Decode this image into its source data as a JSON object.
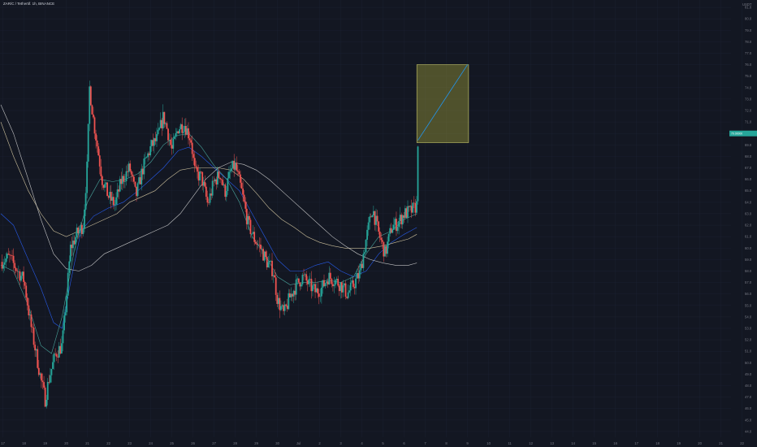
{
  "header": {
    "symbol": "ZAR/C / Tethertif. 1h, BINANCE"
  },
  "price_axis": {
    "currency": "USDT",
    "ticks": [
      "81.0",
      "80.0",
      "79.0",
      "78.0",
      "77.0",
      "76.0",
      "75.0",
      "74.0",
      "73.0",
      "72.0",
      "71.0",
      "70.0",
      "69.0",
      "68.0",
      "67.0",
      "66.0",
      "65.0",
      "64.0",
      "63.0",
      "62.0",
      "61.0",
      "60.0",
      "59.0",
      "58.0",
      "57.0",
      "56.0",
      "55.0",
      "54.0",
      "53.0",
      "52.0",
      "51.0",
      "50.0",
      "49.0",
      "48.0",
      "47.0",
      "46.0",
      "45.0",
      "44.0"
    ],
    "last_price_label": "70.00000"
  },
  "time_axis": {
    "ticks": [
      "17",
      "18",
      "19",
      "20",
      "21",
      "22",
      "23",
      "24",
      "25",
      "26",
      "27",
      "28",
      "29",
      "30",
      "Jul",
      "2",
      "3",
      "4",
      "5",
      "6",
      "7",
      "8",
      "9",
      "10",
      "11",
      "12",
      "13",
      "14",
      "15",
      "16",
      "17",
      "18",
      "19",
      "20",
      "21",
      "22"
    ]
  },
  "colors": {
    "background": "#131722",
    "grid": "#1c2030",
    "up_candle": "#26a69a",
    "down_candle": "#ef5350",
    "ma_fast": "#2962ff",
    "ma_teal": "#4fb3a9",
    "ma_slow": "#e0d2a8",
    "ma_long": "#d6d6d6",
    "projection_box": "#9a9a3a",
    "projection_line": "#2196f3",
    "last_price_tag": "#26a69a"
  },
  "chart_data": {
    "type": "candlestick",
    "x_unit": "day",
    "ylim": [
      43.5,
      81.5
    ],
    "grid": false,
    "price_path": [
      [
        16.9,
        58.8
      ],
      [
        17.3,
        59.2
      ],
      [
        17.7,
        58.0
      ],
      [
        18.0,
        57.2
      ],
      [
        18.3,
        53.5
      ],
      [
        18.5,
        51.5
      ],
      [
        18.8,
        48.5
      ],
      [
        19.0,
        46.8
      ],
      [
        19.2,
        48.8
      ],
      [
        19.5,
        50.8
      ],
      [
        19.8,
        51.5
      ],
      [
        20.0,
        55.5
      ],
      [
        20.2,
        60.0
      ],
      [
        20.5,
        61.2
      ],
      [
        20.8,
        62.0
      ],
      [
        21.0,
        67.5
      ],
      [
        21.1,
        74.0
      ],
      [
        21.3,
        71.0
      ],
      [
        21.5,
        68.5
      ],
      [
        21.7,
        66.0
      ],
      [
        22.0,
        64.5
      ],
      [
        22.3,
        63.8
      ],
      [
        22.6,
        65.8
      ],
      [
        23.0,
        67.0
      ],
      [
        23.3,
        64.5
      ],
      [
        23.6,
        66.8
      ],
      [
        24.0,
        68.8
      ],
      [
        24.3,
        69.5
      ],
      [
        24.6,
        71.5
      ],
      [
        24.8,
        70.2
      ],
      [
        25.0,
        68.5
      ],
      [
        25.3,
        70.5
      ],
      [
        25.6,
        70.8
      ],
      [
        25.9,
        69.5
      ],
      [
        26.1,
        66.5
      ],
      [
        26.4,
        66.2
      ],
      [
        26.7,
        63.8
      ],
      [
        27.0,
        65.8
      ],
      [
        27.3,
        66.5
      ],
      [
        27.5,
        64.8
      ],
      [
        27.8,
        66.8
      ],
      [
        28.0,
        67.2
      ],
      [
        28.3,
        65.0
      ],
      [
        28.6,
        62.2
      ],
      [
        28.9,
        60.8
      ],
      [
        29.2,
        60.0
      ],
      [
        29.5,
        58.8
      ],
      [
        29.8,
        58.0
      ],
      [
        30.0,
        55.5
      ],
      [
        30.3,
        54.2
      ],
      [
        30.6,
        55.8
      ],
      [
        30.9,
        56.8
      ],
      [
        31.2,
        57.5
      ],
      [
        31.5,
        56.8
      ],
      [
        31.8,
        56.2
      ],
      [
        32.1,
        56.5
      ],
      [
        32.4,
        57.5
      ],
      [
        32.7,
        57.2
      ],
      [
        33.0,
        56.8
      ],
      [
        33.3,
        56.0
      ],
      [
        33.6,
        56.8
      ],
      [
        33.9,
        57.8
      ],
      [
        34.2,
        60.8
      ],
      [
        34.5,
        63.5
      ],
      [
        34.8,
        61.2
      ],
      [
        35.1,
        59.5
      ],
      [
        35.4,
        61.8
      ],
      [
        35.7,
        62.2
      ],
      [
        36.0,
        63.0
      ],
      [
        36.3,
        63.2
      ],
      [
        36.5,
        63.5
      ],
      [
        36.6,
        63.8
      ],
      [
        36.62,
        66.0
      ],
      [
        36.65,
        69.4
      ]
    ],
    "moving_averages": [
      {
        "color_key": "ma_fast",
        "points": [
          [
            16.9,
            63.0
          ],
          [
            17.5,
            62.0
          ],
          [
            18.2,
            59.0
          ],
          [
            18.8,
            56.5
          ],
          [
            19.4,
            53.5
          ],
          [
            19.8,
            53.0
          ],
          [
            20.2,
            57.0
          ],
          [
            20.7,
            61.5
          ],
          [
            21.3,
            62.8
          ],
          [
            22.0,
            63.5
          ],
          [
            22.7,
            64.0
          ],
          [
            23.4,
            65.0
          ],
          [
            24.0,
            66.0
          ],
          [
            24.6,
            67.0
          ],
          [
            25.3,
            68.5
          ],
          [
            25.8,
            68.8
          ],
          [
            26.4,
            68.0
          ],
          [
            27.0,
            67.0
          ],
          [
            27.6,
            66.0
          ],
          [
            28.2,
            65.0
          ],
          [
            28.8,
            63.0
          ],
          [
            29.4,
            61.0
          ],
          [
            30.0,
            59.0
          ],
          [
            30.6,
            58.0
          ],
          [
            31.2,
            58.0
          ],
          [
            31.8,
            58.5
          ],
          [
            32.4,
            58.8
          ],
          [
            33.0,
            58.0
          ],
          [
            33.6,
            57.5
          ],
          [
            34.2,
            58.0
          ],
          [
            34.8,
            59.5
          ],
          [
            35.4,
            60.5
          ],
          [
            36.0,
            61.2
          ],
          [
            36.6,
            61.8
          ]
        ]
      },
      {
        "color_key": "ma_teal",
        "points": [
          [
            16.9,
            58.5
          ],
          [
            17.5,
            58.0
          ],
          [
            18.2,
            55.0
          ],
          [
            18.8,
            51.5
          ],
          [
            19.3,
            50.8
          ],
          [
            19.8,
            54.0
          ],
          [
            20.4,
            60.0
          ],
          [
            21.0,
            64.0
          ],
          [
            21.6,
            66.0
          ],
          [
            22.2,
            65.8
          ],
          [
            22.8,
            66.0
          ],
          [
            23.4,
            66.5
          ],
          [
            24.0,
            67.5
          ],
          [
            24.6,
            69.0
          ],
          [
            25.2,
            69.8
          ],
          [
            25.8,
            70.0
          ],
          [
            26.4,
            68.8
          ],
          [
            27.0,
            67.2
          ],
          [
            27.6,
            66.0
          ],
          [
            28.2,
            64.0
          ],
          [
            28.8,
            61.0
          ],
          [
            29.4,
            59.5
          ],
          [
            30.0,
            57.5
          ],
          [
            30.6,
            56.8
          ],
          [
            31.2,
            57.0
          ],
          [
            31.8,
            57.0
          ],
          [
            32.4,
            57.2
          ],
          [
            33.0,
            57.0
          ],
          [
            33.6,
            57.5
          ],
          [
            34.2,
            59.5
          ],
          [
            34.8,
            61.0
          ],
          [
            35.4,
            61.5
          ],
          [
            36.0,
            62.5
          ],
          [
            36.6,
            63.0
          ]
        ]
      },
      {
        "color_key": "ma_slow",
        "points": [
          [
            16.9,
            71.0
          ],
          [
            17.5,
            68.0
          ],
          [
            18.2,
            65.0
          ],
          [
            18.8,
            63.0
          ],
          [
            19.4,
            61.5
          ],
          [
            20.0,
            61.0
          ],
          [
            20.6,
            61.5
          ],
          [
            21.2,
            62.0
          ],
          [
            21.8,
            62.5
          ],
          [
            22.4,
            63.0
          ],
          [
            23.0,
            64.0
          ],
          [
            23.6,
            64.5
          ],
          [
            24.2,
            65.0
          ],
          [
            24.8,
            66.0
          ],
          [
            25.4,
            66.8
          ],
          [
            26.0,
            67.0
          ],
          [
            26.6,
            67.0
          ],
          [
            27.2,
            67.0
          ],
          [
            27.8,
            66.8
          ],
          [
            28.4,
            66.0
          ],
          [
            29.0,
            64.8
          ],
          [
            29.6,
            63.5
          ],
          [
            30.2,
            62.5
          ],
          [
            30.8,
            61.8
          ],
          [
            31.4,
            61.0
          ],
          [
            32.0,
            60.5
          ],
          [
            32.6,
            60.2
          ],
          [
            33.2,
            60.0
          ],
          [
            33.8,
            60.0
          ],
          [
            34.4,
            60.0
          ],
          [
            35.0,
            60.2
          ],
          [
            35.6,
            60.5
          ],
          [
            36.2,
            60.8
          ],
          [
            36.6,
            61.2
          ]
        ]
      },
      {
        "color_key": "ma_long",
        "points": [
          [
            16.9,
            72.5
          ],
          [
            17.5,
            70.0
          ],
          [
            18.2,
            66.0
          ],
          [
            18.8,
            62.5
          ],
          [
            19.4,
            59.5
          ],
          [
            20.0,
            58.2
          ],
          [
            20.6,
            58.0
          ],
          [
            21.2,
            58.5
          ],
          [
            21.8,
            59.5
          ],
          [
            22.4,
            60.0
          ],
          [
            23.0,
            60.5
          ],
          [
            23.6,
            61.0
          ],
          [
            24.2,
            61.5
          ],
          [
            24.8,
            62.0
          ],
          [
            25.4,
            63.0
          ],
          [
            26.0,
            64.5
          ],
          [
            26.6,
            66.0
          ],
          [
            27.2,
            67.0
          ],
          [
            27.8,
            67.5
          ],
          [
            28.4,
            67.3
          ],
          [
            29.0,
            66.8
          ],
          [
            29.6,
            66.0
          ],
          [
            30.2,
            65.0
          ],
          [
            30.8,
            64.0
          ],
          [
            31.4,
            63.0
          ],
          [
            32.0,
            62.0
          ],
          [
            32.6,
            61.0
          ],
          [
            33.2,
            60.2
          ],
          [
            33.8,
            59.5
          ],
          [
            34.4,
            59.0
          ],
          [
            35.0,
            58.7
          ],
          [
            35.6,
            58.5
          ],
          [
            36.2,
            58.5
          ],
          [
            36.6,
            58.7
          ]
        ]
      }
    ],
    "projection": {
      "x_range": [
        36.6,
        39.05
      ],
      "y_range": [
        69.2,
        76.0
      ],
      "line_from": [
        36.65,
        69.4
      ],
      "line_to": [
        39.0,
        76.0
      ]
    },
    "last_price": 70.0
  }
}
